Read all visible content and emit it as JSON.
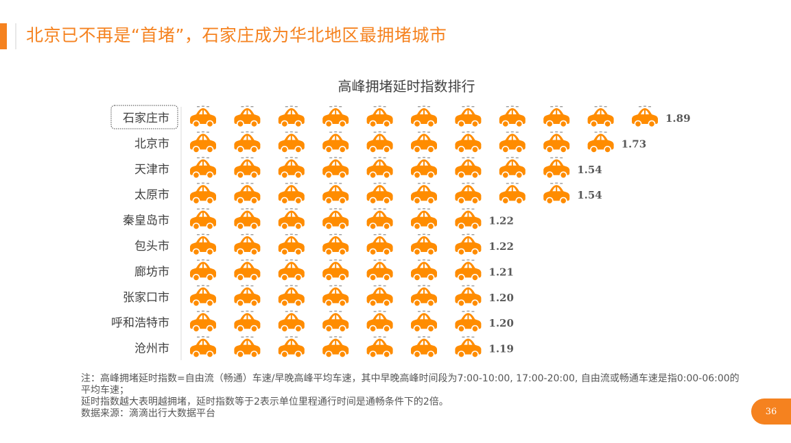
{
  "slide": {
    "title": "北京已不再是“首堵”，石家庄成为华北地区最拥堵城市",
    "page_number": "36"
  },
  "colors": {
    "accent": "#f5821f",
    "car": "#ff8c00",
    "label": "#404040",
    "value": "#595959"
  },
  "icons": {
    "unit_icon": "car-icon"
  },
  "chart_data": {
    "type": "bar",
    "orientation": "horizontal",
    "style": "pictograph",
    "title": "高峰拥堵延时指数排行",
    "categories": [
      "石家庄市",
      "北京市",
      "天津市",
      "太原市",
      "秦皇岛市",
      "包头市",
      "廊坊市",
      "张家口市",
      "呼和浩特市",
      "沧州市"
    ],
    "values": [
      1.89,
      1.73,
      1.54,
      1.54,
      1.22,
      1.22,
      1.21,
      1.2,
      1.2,
      1.19
    ],
    "value_labels": [
      "1.89",
      "1.73",
      "1.54",
      "1.54",
      "1.22",
      "1.22",
      "1.21",
      "1.20",
      "1.20",
      "1.19"
    ],
    "icon_counts": [
      11,
      10,
      9,
      9,
      7,
      7,
      7,
      7,
      7,
      7
    ],
    "highlighted_category": "石家庄市",
    "xlabel": "",
    "ylabel": "",
    "grid": false,
    "legend": "none"
  },
  "footnote": {
    "line1": "注：高峰拥堵延时指数=自由流（畅通）车速/早晚高峰平均车速，其中早晚高峰时间段为7:00-10:00, 17:00-20:00, 自由流或畅通车速是指0:00-06:00的平均车速；",
    "line2": "延时指数越大表明越拥堵，延时指数等于2表示单位里程通行时间是通畅条件下的2倍。",
    "line3": "数据来源：滴滴出行大数据平台"
  }
}
